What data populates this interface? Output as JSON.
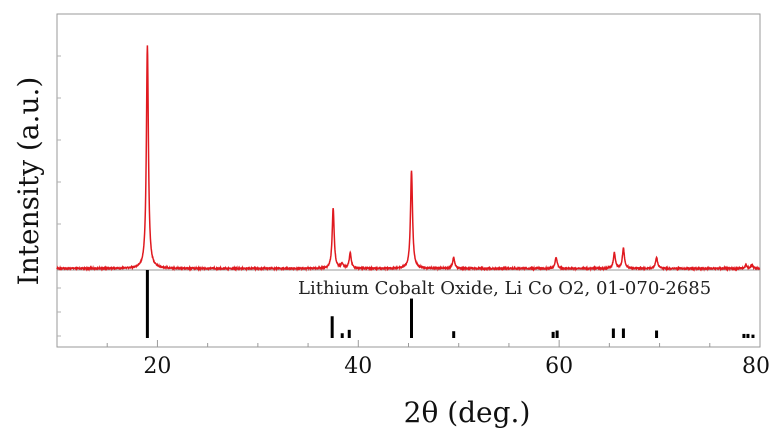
{
  "chart_data": {
    "type": "line",
    "xlabel": "2θ (deg.)",
    "ylabel": "Intensity (a.u.)",
    "xlim": [
      10,
      80
    ],
    "xticks": [
      20,
      40,
      60,
      80
    ],
    "grid": false,
    "series": [
      {
        "color": "#e0191f",
        "peaks": [
          {
            "x": 19.0,
            "y": 100
          },
          {
            "x": 37.5,
            "y": 27
          },
          {
            "x": 38.4,
            "y": 2
          },
          {
            "x": 39.2,
            "y": 7
          },
          {
            "x": 45.3,
            "y": 44
          },
          {
            "x": 49.5,
            "y": 5
          },
          {
            "x": 59.7,
            "y": 5
          },
          {
            "x": 65.5,
            "y": 7
          },
          {
            "x": 66.4,
            "y": 9
          },
          {
            "x": 69.7,
            "y": 5
          },
          {
            "x": 78.6,
            "y": 1.5
          },
          {
            "x": 79.2,
            "y": 1.5
          }
        ]
      }
    ],
    "reference": {
      "label": "Lithium Cobalt Oxide, Li Co O2, 01-070-2685",
      "color": "#000000",
      "lines": [
        {
          "x": 19.0,
          "y": 100
        },
        {
          "x": 37.4,
          "y": 32
        },
        {
          "x": 38.4,
          "y": 7
        },
        {
          "x": 39.1,
          "y": 12
        },
        {
          "x": 45.3,
          "y": 58
        },
        {
          "x": 49.5,
          "y": 10
        },
        {
          "x": 59.4,
          "y": 9
        },
        {
          "x": 59.8,
          "y": 11
        },
        {
          "x": 65.4,
          "y": 14
        },
        {
          "x": 66.4,
          "y": 14
        },
        {
          "x": 69.7,
          "y": 11
        },
        {
          "x": 78.4,
          "y": 6
        },
        {
          "x": 78.8,
          "y": 6
        },
        {
          "x": 79.3,
          "y": 5
        }
      ]
    }
  }
}
